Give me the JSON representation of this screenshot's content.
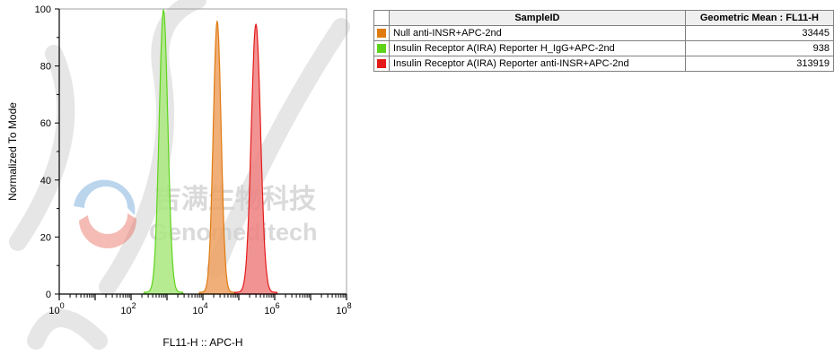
{
  "chart_data": {
    "type": "area",
    "xlabel": "FL11-H :: APC-H",
    "ylabel": "Normalized To Mode",
    "xscale": "log",
    "xlim": [
      1,
      100000000
    ],
    "ylim": [
      0,
      100
    ],
    "y_ticks": [
      "0",
      "20",
      "40",
      "60",
      "80",
      "100"
    ],
    "x_tick_exponents": [
      "0",
      "2",
      "4",
      "6",
      "8"
    ],
    "x_tick_base": "10",
    "grid": false,
    "series": [
      {
        "name": "Null anti-INSR+APC-2nd",
        "color": "#e07b10",
        "fill": "#eda060",
        "peak_x": 25000,
        "peak_y": 95,
        "geo_mean": "33445",
        "log_width": 0.11
      },
      {
        "name": "Insulin Receptor A(IRA) Reporter H_IgG+APC-2nd",
        "color": "#5fd31c",
        "fill": "#a9e87f",
        "peak_x": 800,
        "peak_y": 99,
        "geo_mean": "938",
        "log_width": 0.12
      },
      {
        "name": "Insulin Receptor A(IRA) Reporter anti-INSR+APC-2nd",
        "color": "#e41a1a",
        "fill": "#f08080",
        "peak_x": 300000,
        "peak_y": 94,
        "geo_mean": "313919",
        "log_width": 0.13
      }
    ]
  },
  "table": {
    "header_sample": "SampleID",
    "header_value": "Geometric Mean : FL11-H"
  },
  "watermark": {
    "cn": "吉满生物科技",
    "en": "Genomeditech"
  }
}
